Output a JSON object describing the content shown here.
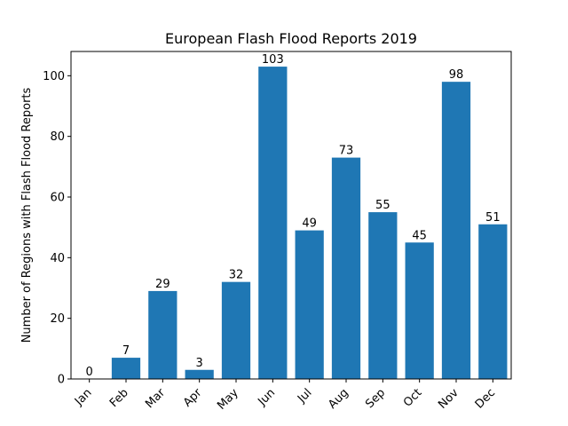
{
  "chart_data": {
    "type": "bar",
    "title": "European Flash Flood Reports 2019",
    "xlabel": "",
    "ylabel": "Number of Regions with Flash Flood Reports",
    "categories": [
      "Jan",
      "Feb",
      "Mar",
      "Apr",
      "May",
      "Jun",
      "Jul",
      "Aug",
      "Sep",
      "Oct",
      "Nov",
      "Dec"
    ],
    "values": [
      0,
      7,
      29,
      3,
      32,
      103,
      49,
      73,
      55,
      45,
      98,
      51
    ],
    "data_labels": [
      "0",
      "7",
      "29",
      "3",
      "32",
      "103",
      "49",
      "73",
      "55",
      "45",
      "98",
      "51"
    ],
    "ylim": [
      0,
      108
    ],
    "yticks": [
      0,
      20,
      40,
      60,
      80,
      100
    ],
    "ytick_labels": [
      "0",
      "20",
      "40",
      "60",
      "80",
      "100"
    ],
    "bar_color": "#1f77b4",
    "grid": false,
    "xtick_rotation_deg": 45
  }
}
